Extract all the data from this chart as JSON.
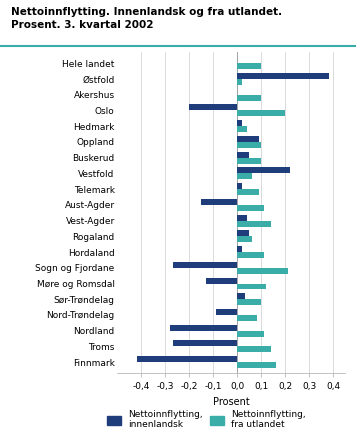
{
  "title": "Nettoinnflytting. Innenlandsk og fra utlandet.\nProsent. 3. kvartal 2002",
  "categories": [
    "Hele landet",
    "Østfold",
    "Akershus",
    "Oslo",
    "Hedmark",
    "Oppland",
    "Buskerud",
    "Vestfold",
    "Telemark",
    "Aust-Agder",
    "Vest-Agder",
    "Rogaland",
    "Hordaland",
    "Sogn og Fjordane",
    "Møre og Romsdal",
    "Sør-Trøndelag",
    "Nord-Trøndelag",
    "Nordland",
    "Troms",
    "Finnmark"
  ],
  "innenlandsk": [
    0.0,
    0.38,
    0.0,
    -0.2,
    0.02,
    0.09,
    0.05,
    0.22,
    0.02,
    -0.15,
    0.04,
    0.05,
    0.02,
    -0.27,
    -0.13,
    0.03,
    -0.09,
    -0.28,
    -0.27,
    -0.42
  ],
  "fra_utlandet": [
    0.1,
    0.02,
    0.1,
    0.2,
    0.04,
    0.1,
    0.1,
    0.06,
    0.09,
    0.11,
    0.14,
    0.06,
    0.11,
    0.21,
    0.12,
    0.1,
    0.08,
    0.11,
    0.14,
    0.16
  ],
  "color_innenlandsk": "#1f3d7a",
  "color_fra_utlandet": "#3aada8",
  "xlabel": "Prosent",
  "xlim": [
    -0.5,
    0.45
  ],
  "xticks": [
    -0.4,
    -0.3,
    -0.2,
    -0.1,
    0.0,
    0.1,
    0.2,
    0.3,
    0.4
  ],
  "xtick_labels": [
    "-0,4",
    "-0,3",
    "-0,2",
    "-0,1",
    "0,0",
    "0,1",
    "0,2",
    "0,3",
    "0,4"
  ],
  "legend_label_innenlandsk": "Nettoinnflytting,\ninnenlandsk",
  "legend_label_fra_utlandet": "Nettoinnflytting,\nfra utlandet",
  "background_color": "#ffffff",
  "grid_color": "#cccccc",
  "title_line_color": "#3aada8"
}
